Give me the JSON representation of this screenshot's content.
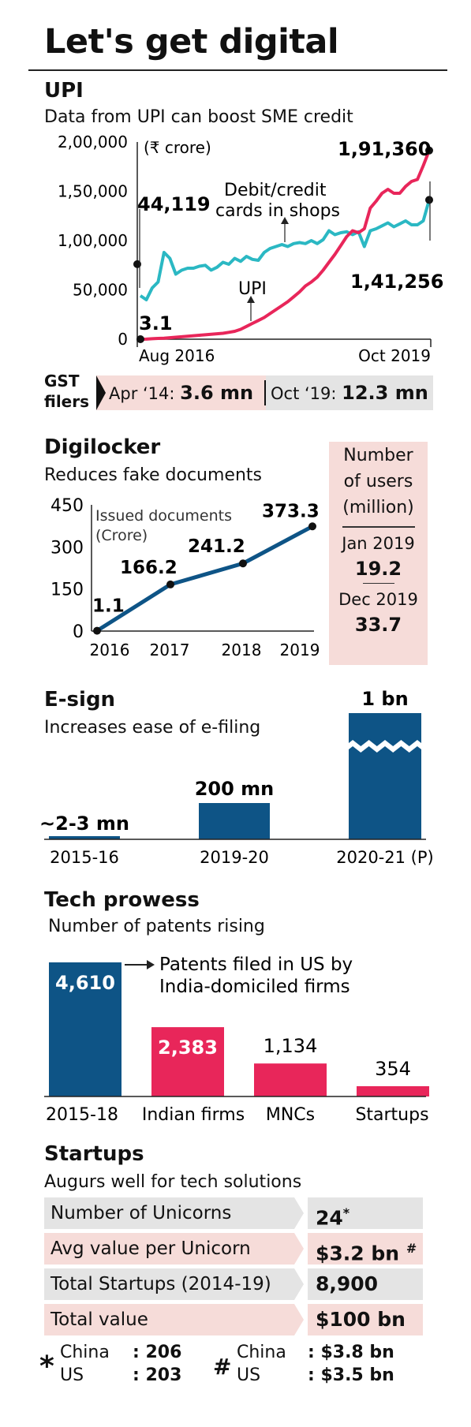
{
  "page_title": "Let's get digital",
  "upi": {
    "title": "UPI",
    "subtitle": "Data from UPI can boost SME credit",
    "unit_note": "(₹ crore)",
    "annotations": {
      "cards_label_1": "Debit/credit",
      "cards_label_2": "cards in shops",
      "upi_label": "UPI",
      "cards_start": "44,119",
      "upi_start": "3.1",
      "upi_end": "1,91,360",
      "cards_end": "1,41,256"
    }
  },
  "gst": {
    "label_1": "GST",
    "label_2": "filers",
    "a_prefix": "Apr ‘14:",
    "a_value": "3.6 mn",
    "b_prefix": "Oct ‘19:",
    "b_value": "12.3 mn"
  },
  "digilocker": {
    "title": "Digilocker",
    "subtitle": "Reduces fake documents",
    "note_1": "Issued documents",
    "note_2": "(Crore)"
  },
  "users_box": {
    "heading_1": "Number",
    "heading_2": "of users",
    "heading_3": "(million)",
    "jan_label": "Jan 2019",
    "jan_value": "19.2",
    "dec_label": "Dec 2019",
    "dec_value": "33.7"
  },
  "esign": {
    "title": "E-sign",
    "subtitle": "Increases ease of e-filing"
  },
  "tech": {
    "title": "Tech prowess",
    "subtitle": "Number of patents rising",
    "note_1": "Patents filed in US by",
    "note_2": "India-domiciled firms"
  },
  "startups": {
    "title": "Startups",
    "subtitle": "Augurs well for tech solutions",
    "rows": [
      {
        "label": "Number of Unicorns",
        "value": "24",
        "mark": "*"
      },
      {
        "label": "Avg value per Unicorn",
        "value": "$3.2 bn",
        "mark": "#"
      },
      {
        "label": "Total Startups (2014-19)",
        "value": "8,900",
        "mark": ""
      },
      {
        "label": "Total value",
        "value": "$100 bn",
        "mark": ""
      }
    ],
    "foot_star": {
      "symbol": "*",
      "c1": "China",
      "v1": ": 206",
      "c2": "US",
      "v2": ": 203"
    },
    "foot_hash": {
      "symbol": "#",
      "c1": "China",
      "v1": ": $3.8 bn",
      "c2": "US",
      "v2": ": $3.5 bn"
    }
  },
  "colors": {
    "teal": "#2bb8c3",
    "crimson": "#e8265a",
    "navy": "#0e5486",
    "pink_bg": "#f6dcd9",
    "grey_bg": "#e4e4e4"
  },
  "chart_data": [
    {
      "type": "line",
      "title": "UPI",
      "ylim": [
        0,
        200000
      ],
      "yticks": [
        "0",
        "50,000",
        "1,00,000",
        "1,50,000",
        "2,00,000"
      ],
      "yticks_values": [
        0,
        50000,
        100000,
        150000,
        200000
      ],
      "x_labels": [
        "Aug 2016",
        "Oct 2019"
      ],
      "series": [
        {
          "name": "Debit/credit cards in shops",
          "color": "#2bb8c3",
          "values": [
            44119,
            40000,
            52000,
            58000,
            88000,
            82000,
            66000,
            70000,
            72000,
            72000,
            74000,
            75000,
            70000,
            73000,
            78000,
            76000,
            82000,
            79000,
            84000,
            81000,
            80000,
            88000,
            92000,
            94000,
            96000,
            94000,
            97000,
            98000,
            97000,
            100000,
            97000,
            101000,
            110000,
            106000,
            108000,
            109000,
            106000,
            109000,
            94000,
            110000,
            112000,
            115000,
            118000,
            114000,
            117000,
            120000,
            116000,
            116000,
            120000,
            141256
          ]
        },
        {
          "name": "UPI",
          "color": "#e8265a",
          "values": [
            3.1,
            100,
            500,
            800,
            1000,
            1500,
            2000,
            2500,
            3000,
            3500,
            4000,
            4500,
            5000,
            5500,
            6000,
            7000,
            8000,
            10000,
            13000,
            16000,
            19000,
            22000,
            26000,
            30000,
            34000,
            38000,
            43000,
            48000,
            54000,
            58000,
            63000,
            70000,
            78000,
            86000,
            95000,
            104000,
            110000,
            108000,
            112000,
            133000,
            140000,
            148000,
            152000,
            148000,
            148000,
            155000,
            160000,
            162000,
            176000,
            191360
          ]
        }
      ]
    },
    {
      "type": "line",
      "title": "Digilocker",
      "categories": [
        "2016",
        "2017",
        "2018",
        "2019"
      ],
      "values": [
        1.1,
        166.2,
        241.2,
        373.3
      ],
      "value_labels": [
        "1.1",
        "166.2",
        "241.2",
        "373.3"
      ],
      "ylim": [
        0,
        450
      ],
      "yticks": [
        "0",
        "150",
        "300",
        "450"
      ],
      "yticks_values": [
        0,
        150,
        300,
        450
      ]
    },
    {
      "type": "bar",
      "title": "E-sign",
      "categories": [
        "2015-16",
        "2019-20",
        "2020-21 (P)"
      ],
      "values": [
        2.5,
        200,
        1000
      ],
      "value_labels": [
        "~2-3 mn",
        "200 mn",
        "1 bn"
      ],
      "axis_break": true
    },
    {
      "type": "bar",
      "title": "Tech prowess",
      "categories": [
        "2015-18",
        "Indian firms",
        "MNCs",
        "Startups"
      ],
      "values": [
        4610,
        2383,
        1134,
        354
      ],
      "value_labels": [
        "4,610",
        "2,383",
        "1,134",
        "354"
      ],
      "bar_colors": [
        "#0e5486",
        "#e8265a",
        "#e8265a",
        "#e8265a"
      ]
    }
  ]
}
